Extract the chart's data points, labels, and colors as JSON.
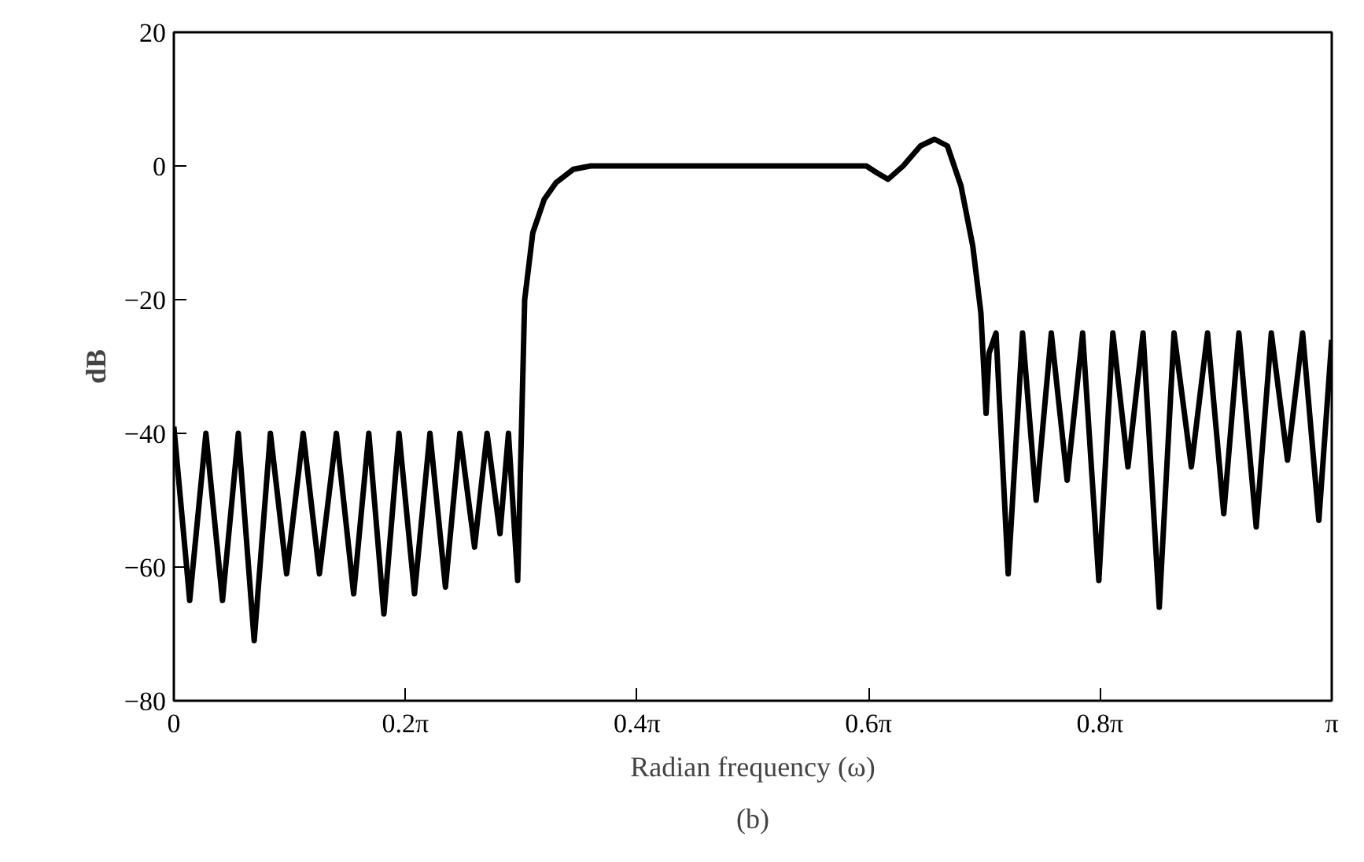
{
  "chart_data": {
    "type": "line",
    "xlabel": "Radian frequency (ω)",
    "ylabel": "dB",
    "annotations": [
      "(b)"
    ],
    "xlim": [
      0,
      3.142
    ],
    "ylim": [
      -80,
      20
    ],
    "xticks": [
      0,
      {
        "value": 0.628,
        "label": "0.2π"
      },
      {
        "value": 1.257,
        "label": "0.4π"
      },
      {
        "value": 1.885,
        "label": "0.6π"
      },
      {
        "value": 2.513,
        "label": "0.8π"
      },
      {
        "value": 3.142,
        "label": "π"
      }
    ],
    "yticks": [
      -80,
      -60,
      -40,
      -20,
      0,
      20
    ],
    "grid": false,
    "marker": "none",
    "line_style": "solid",
    "series": [
      {
        "color": "#000000",
        "x": [
          0,
          0.043,
          0.087,
          0.132,
          0.175,
          0.218,
          0.262,
          0.306,
          0.351,
          0.395,
          0.441,
          0.488,
          0.529,
          0.57,
          0.611,
          0.653,
          0.695,
          0.737,
          0.776,
          0.816,
          0.85,
          0.885,
          0.908,
          0.933,
          0.944,
          0.952,
          0.974,
          1.005,
          1.037,
          1.084,
          1.131,
          1.571,
          1.879,
          1.907,
          1.938,
          1.979,
          2.026,
          2.064,
          2.099,
          2.136,
          2.168,
          2.19,
          2.204,
          2.212,
          2.231,
          2.264,
          2.303,
          2.34,
          2.381,
          2.424,
          2.466,
          2.51,
          2.548,
          2.589,
          2.63,
          2.674,
          2.714,
          2.761,
          2.805,
          2.849,
          2.89,
          2.937,
          2.978,
          3.022,
          3.063,
          3.107,
          3.142
        ],
        "values": [
          -39,
          -65,
          -40,
          -65,
          -40,
          -71,
          -40,
          -61,
          -40,
          -61,
          -40,
          -64,
          -40,
          -67,
          -40,
          -64,
          -40,
          -63,
          -40,
          -57,
          -40,
          -55,
          -40,
          -62,
          -38,
          -20,
          -10,
          -5,
          -2.5,
          -0.5,
          0,
          0,
          0,
          -1,
          -2,
          0,
          3,
          4,
          3,
          -3,
          -12,
          -22,
          -37,
          -28,
          -25,
          -61,
          -25,
          -50,
          -25,
          -47,
          -25,
          -62,
          -25,
          -45,
          -25,
          -66,
          -25,
          -45,
          -25,
          -52,
          -25,
          -54,
          -25,
          -44,
          -25,
          -53,
          -26
        ]
      }
    ]
  }
}
